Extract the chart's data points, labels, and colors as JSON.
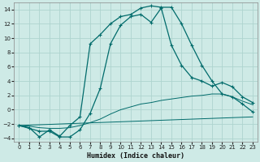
{
  "xlabel": "Humidex (Indice chaleur)",
  "background_color": "#ceeae6",
  "grid_color": "#aed4cf",
  "line_color": "#006b6b",
  "xlim": [
    -0.5,
    23.5
  ],
  "ylim": [
    -4.5,
    15.0
  ],
  "xticks": [
    0,
    1,
    2,
    3,
    4,
    5,
    6,
    7,
    8,
    9,
    10,
    11,
    12,
    13,
    14,
    15,
    16,
    17,
    18,
    19,
    20,
    21,
    22,
    23
  ],
  "yticks": [
    -4,
    -2,
    0,
    2,
    4,
    6,
    8,
    10,
    12,
    14
  ],
  "series1_x": [
    0,
    1,
    2,
    3,
    4,
    5,
    6,
    7,
    8,
    9,
    10,
    11,
    12,
    13,
    14,
    15,
    16,
    17,
    18,
    19,
    20,
    21,
    22,
    23
  ],
  "series1_y": [
    -2.2,
    -2.5,
    -3.8,
    -2.8,
    -3.7,
    -2.2,
    -1.0,
    9.2,
    10.5,
    12.0,
    13.0,
    13.3,
    14.2,
    14.5,
    14.3,
    14.3,
    12.0,
    9.0,
    6.2,
    4.0,
    2.2,
    1.8,
    0.8,
    -0.3
  ],
  "series1_has_markers": true,
  "series2_x": [
    0,
    1,
    2,
    3,
    4,
    5,
    6,
    7,
    8,
    9,
    10,
    11,
    12,
    13,
    14,
    15,
    16,
    17,
    18,
    19,
    20,
    21,
    22,
    23
  ],
  "series2_y": [
    -2.2,
    -2.6,
    -3.0,
    -3.0,
    -3.8,
    -3.8,
    -2.8,
    -0.5,
    3.0,
    9.2,
    11.8,
    13.0,
    13.3,
    12.2,
    14.2,
    9.0,
    6.2,
    4.5,
    4.0,
    3.3,
    3.8,
    3.2,
    1.8,
    1.0
  ],
  "series2_has_markers": true,
  "series3_x": [
    0,
    23
  ],
  "series3_y": [
    -2.2,
    -1.0
  ],
  "series3_has_markers": false,
  "series4_x": [
    0,
    1,
    2,
    3,
    4,
    5,
    6,
    7,
    8,
    9,
    10,
    11,
    12,
    13,
    14,
    15,
    16,
    17,
    18,
    19,
    20,
    21,
    22,
    23
  ],
  "series4_y": [
    -2.2,
    -2.3,
    -2.5,
    -2.6,
    -2.6,
    -2.5,
    -2.2,
    -1.8,
    -1.3,
    -0.6,
    0.0,
    0.4,
    0.8,
    1.0,
    1.3,
    1.5,
    1.7,
    1.9,
    2.0,
    2.2,
    2.2,
    1.8,
    1.2,
    0.7
  ],
  "series4_has_markers": false,
  "tick_fontsize": 5.0,
  "xlabel_fontsize": 6.0
}
